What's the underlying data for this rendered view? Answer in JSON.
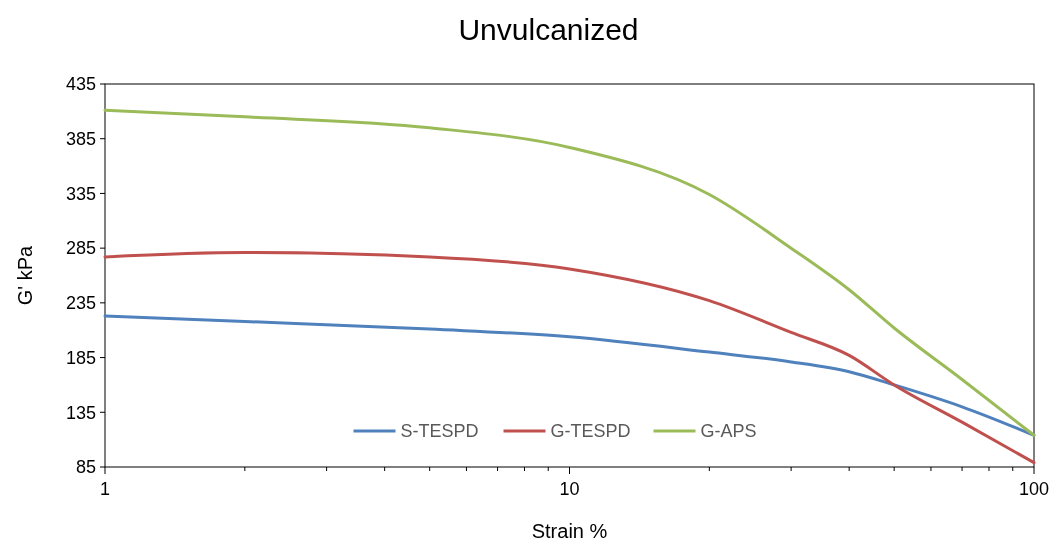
{
  "chart_data": {
    "type": "line",
    "title": "Unvulcanized",
    "xlabel": "Strain %",
    "ylabel": "G' kPa",
    "log": "x",
    "xlim": [
      1,
      100
    ],
    "xticks": [
      1,
      {
        "value": 2,
        "label": null
      },
      {
        "value": 3,
        "label": null
      },
      {
        "value": 4,
        "label": null
      },
      {
        "value": 5,
        "label": null
      },
      {
        "value": 6,
        "label": null
      },
      {
        "value": 7,
        "label": null
      },
      {
        "value": 8,
        "label": null
      },
      {
        "value": 9,
        "label": null
      },
      10,
      {
        "value": 20,
        "label": null
      },
      {
        "value": 30,
        "label": null
      },
      {
        "value": 40,
        "label": null
      },
      {
        "value": 50,
        "label": null
      },
      {
        "value": 60,
        "label": null
      },
      {
        "value": 70,
        "label": null
      },
      {
        "value": 80,
        "label": null
      },
      {
        "value": 90,
        "label": null
      },
      100
    ],
    "ylim": [
      85,
      435
    ],
    "yticks": [
      85,
      135,
      185,
      235,
      285,
      335,
      385,
      435
    ],
    "grid": false,
    "legend": "bottom",
    "marker": "none",
    "line_style": "solid",
    "x": [
      1,
      2,
      5,
      10,
      20,
      30,
      40,
      50,
      70,
      100
    ],
    "series": [
      {
        "name": "S-TESPD",
        "color": "#4f81bd",
        "values": [
          223,
          218,
          211,
          204,
          190,
          181,
          172,
          160,
          140,
          114
        ]
      },
      {
        "name": "G-TESPD",
        "color": "#c0504d",
        "values": [
          277,
          281,
          277,
          266,
          237,
          208,
          187,
          160,
          126,
          89
        ]
      },
      {
        "name": "G-APS",
        "color": "#9bbb59",
        "values": [
          411,
          405,
          395,
          377,
          334,
          285,
          247,
          212,
          165,
          114
        ]
      }
    ]
  }
}
